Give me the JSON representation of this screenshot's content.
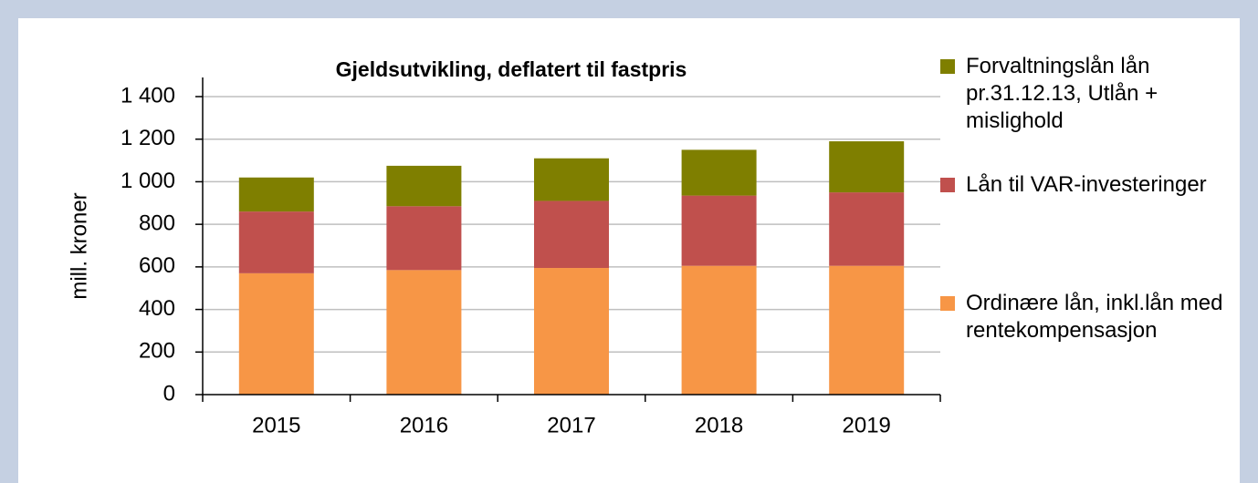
{
  "chart_data": {
    "type": "stacked_bar",
    "title": "Gjeldsutvikling, deflatert til fastpris",
    "y_label": "mill. kroner",
    "categories": [
      "2015",
      "2016",
      "2017",
      "2018",
      "2019"
    ],
    "series": [
      {
        "name": "Ordinære lån, inkl.lån med rentekompensasjon",
        "color": "#f79646",
        "values": [
          570,
          585,
          595,
          605,
          605
        ]
      },
      {
        "name": "Lån til VAR-investeringer",
        "color": "#c0504d",
        "values": [
          290,
          300,
          315,
          330,
          345
        ]
      },
      {
        "name": "Forvaltningslån lån pr.31.12.13, Utlån + mislighold",
        "color": "#7f7f00",
        "values": [
          160,
          190,
          200,
          215,
          240
        ]
      }
    ],
    "ylim": [
      0,
      1400
    ],
    "yticks": [
      0,
      200,
      400,
      600,
      800,
      {
        "value": 1000,
        "label": "1 000"
      },
      {
        "value": 1200,
        "label": "1 200"
      },
      {
        "value": 1400,
        "label": "1 400"
      }
    ],
    "grid": true,
    "legend": "right"
  }
}
